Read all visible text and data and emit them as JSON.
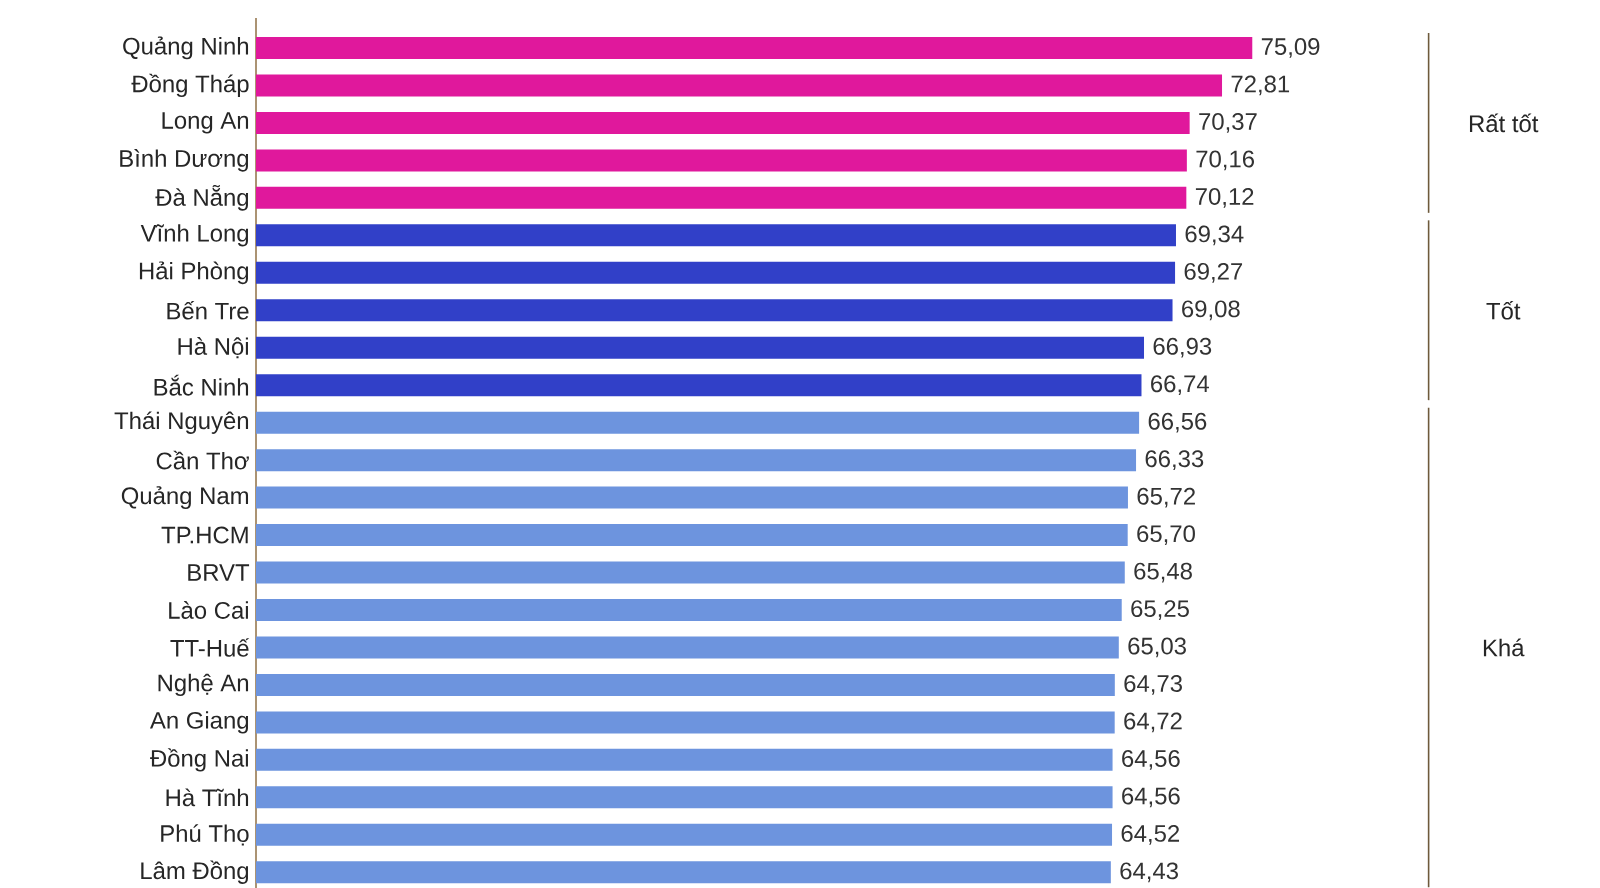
{
  "chart_data": {
    "type": "bar",
    "orientation": "horizontal",
    "categories": [
      "Quảng Ninh",
      "Đồng Tháp",
      "Long An",
      "Bình Dương",
      "Đà Nẵng",
      "Vĩnh Long",
      "Hải Phòng",
      "Bến Tre",
      "Hà Nội",
      "Bắc Ninh",
      "Thái Nguyên",
      "Cần Thơ",
      "Quảng Nam",
      "TP.HCM",
      "BRVT",
      "Lào Cai",
      "TT-Huế",
      "Nghệ An",
      "An Giang",
      "Đồng Nai",
      "Hà Tĩnh",
      "Phú Thọ",
      "Lâm Đồng"
    ],
    "values": [
      75.09,
      72.81,
      70.37,
      70.16,
      70.12,
      69.34,
      69.27,
      69.08,
      66.93,
      66.74,
      66.56,
      66.33,
      65.72,
      65.7,
      65.48,
      65.25,
      65.03,
      64.73,
      64.72,
      64.56,
      64.56,
      64.52,
      64.43
    ],
    "value_labels": [
      "75,09",
      "72,81",
      "70,37",
      "70,16",
      "70,12",
      "69,34",
      "69,27",
      "69,08",
      "66,93",
      "66,74",
      "66,56",
      "66,33",
      "65,72",
      "65,70",
      "65,48",
      "65,25",
      "65,03",
      "64,73",
      "64,72",
      "64,56",
      "64,56",
      "64,52",
      "64,43"
    ],
    "colors": [
      "#e0189c",
      "#e0189c",
      "#e0189c",
      "#e0189c",
      "#e0189c",
      "#3140c8",
      "#3140c8",
      "#3140c8",
      "#3140c8",
      "#3140c8",
      "#6d94de",
      "#6d94de",
      "#6d94de",
      "#6d94de",
      "#6d94de",
      "#6d94de",
      "#6d94de",
      "#6d94de",
      "#6d94de",
      "#6d94de",
      "#6d94de",
      "#6d94de",
      "#6d94de"
    ],
    "tick_labels": "y",
    "annotations": [
      "Rất tốt",
      "Tốt",
      "Khá"
    ]
  }
}
